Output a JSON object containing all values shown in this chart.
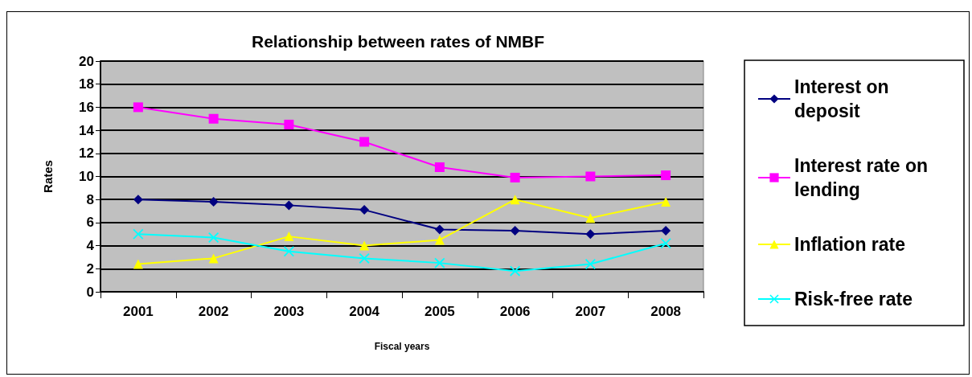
{
  "chart_data": {
    "type": "line",
    "title": "Relationship between rates of NMBF",
    "xlabel": "Fiscal years",
    "ylabel": "Rates",
    "categories": [
      "2001",
      "2002",
      "2003",
      "2004",
      "2005",
      "2006",
      "2007",
      "2008"
    ],
    "series": [
      {
        "name": "Interest on deposit",
        "color": "#000080",
        "marker": "diamond",
        "values": [
          8,
          7.8,
          7.5,
          7.1,
          5.4,
          5.3,
          5.0,
          5.3
        ]
      },
      {
        "name": "Interest rate on lending",
        "color": "#ff00ff",
        "marker": "square",
        "values": [
          16,
          15,
          14.5,
          13,
          10.8,
          9.9,
          10,
          10.1
        ]
      },
      {
        "name": "Inflation rate",
        "color": "#ffff00",
        "marker": "triangle",
        "values": [
          2.4,
          2.9,
          4.8,
          4.0,
          4.5,
          8.0,
          6.4,
          7.8
        ]
      },
      {
        "name": "Risk-free rate",
        "color": "#00ffff",
        "marker": "cross",
        "values": [
          5.0,
          4.7,
          3.5,
          2.9,
          2.5,
          1.8,
          2.4,
          4.2
        ]
      }
    ],
    "ylim": [
      0,
      20
    ],
    "yticks": [
      0,
      2,
      4,
      6,
      8,
      10,
      12,
      14,
      16,
      18,
      20
    ],
    "grid": "y",
    "legend": "right",
    "line_style": "solid"
  }
}
